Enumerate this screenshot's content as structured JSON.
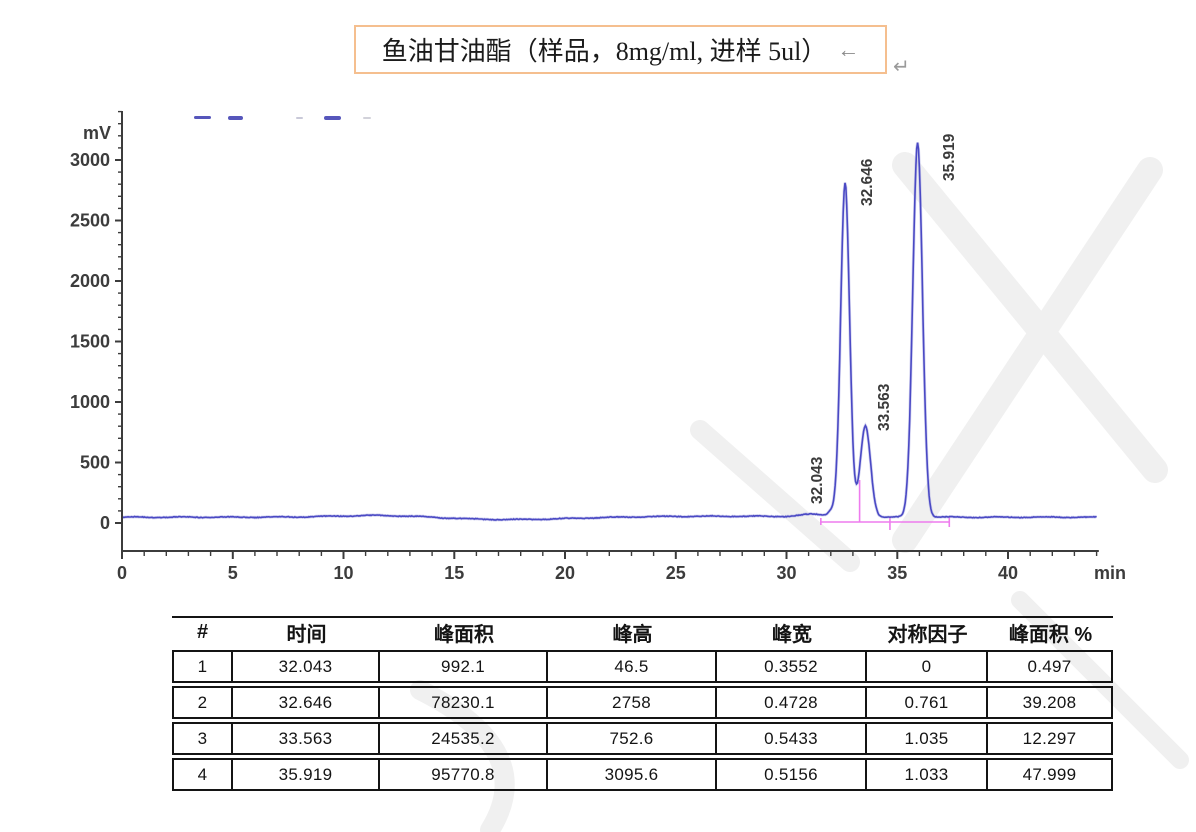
{
  "title_box": {
    "text": "鱼油甘油酯（样品，8mg/ml, 进样 5ul）",
    "arrow_icon": "←",
    "return_icon": "↵",
    "border_color": "#f5bf8f"
  },
  "chart_data": {
    "type": "line",
    "title": "",
    "xlabel": "min",
    "ylabel": "mV",
    "x_ticks": [
      0,
      5,
      10,
      15,
      20,
      25,
      30,
      35,
      40
    ],
    "x_minor_step": 1,
    "xlim": [
      0,
      44.1
    ],
    "y_ticks": [
      0,
      500,
      1000,
      1500,
      2000,
      2500,
      3000
    ],
    "y_minor_step": 100,
    "ylim": [
      0,
      3400
    ],
    "grid": false,
    "legend": "none",
    "line_color": "#4A49C4",
    "integration_color": "#EE7BEE",
    "baseline_mV": 48,
    "peaks": [
      {
        "label": "32.043",
        "rt_min": 32.043,
        "height_mV": 46.5,
        "width_min": 0.3552
      },
      {
        "label": "32.646",
        "rt_min": 32.646,
        "height_mV": 2758,
        "width_min": 0.4728
      },
      {
        "label": "33.563",
        "rt_min": 33.563,
        "height_mV": 752.6,
        "width_min": 0.5433
      },
      {
        "label": "35.919",
        "rt_min": 35.919,
        "height_mV": 3095.6,
        "width_min": 0.5156
      }
    ],
    "integration": {
      "baseline_start_min": 31.55,
      "baseline_end_min": 37.35,
      "valley_drop_min": 33.3,
      "tick_marks_min": [
        31.55,
        34.67,
        37.35
      ]
    }
  },
  "table": {
    "headers": [
      "#",
      "时间",
      "峰面积",
      "峰高",
      "峰宽",
      "对称因子",
      "峰面积 %"
    ],
    "rows": [
      [
        "1",
        "32.043",
        "992.1",
        "46.5",
        "0.3552",
        "0",
        "0.497"
      ],
      [
        "2",
        "32.646",
        "78230.1",
        "2758",
        "0.4728",
        "0.761",
        "39.208"
      ],
      [
        "3",
        "33.563",
        "24535.2",
        "752.6",
        "0.5433",
        "1.035",
        "12.297"
      ],
      [
        "4",
        "35.919",
        "95770.8",
        "3095.6",
        "0.5156",
        "1.033",
        "47.999"
      ]
    ]
  }
}
